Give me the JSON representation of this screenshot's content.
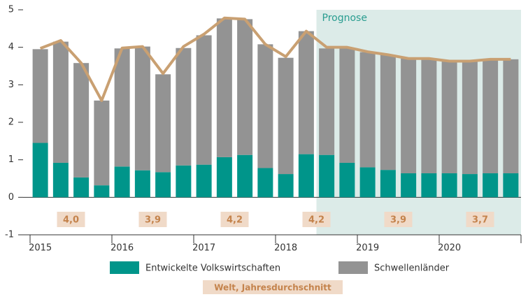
{
  "chart_data": {
    "type": "stacked-bar-line",
    "categories": [
      "2015",
      null,
      null,
      null,
      "2016",
      null,
      null,
      null,
      "2017",
      null,
      null,
      null,
      "2018",
      null,
      null,
      null,
      "2019",
      null,
      null,
      null,
      "2020",
      null,
      null,
      null
    ],
    "series": [
      {
        "name": "Entwickelte Volkswirtschaften",
        "color": "#00958a",
        "values": [
          1.45,
          0.92,
          0.53,
          0.32,
          0.82,
          0.72,
          0.67,
          0.85,
          0.87,
          1.07,
          1.13,
          0.78,
          0.62,
          1.15,
          1.13,
          0.92,
          0.8,
          0.73,
          0.64,
          0.64,
          0.64,
          0.62,
          0.64,
          0.64
        ]
      },
      {
        "name": "Schwellenländer",
        "color": "#939393",
        "values": [
          2.5,
          3.23,
          3.05,
          2.26,
          3.15,
          3.3,
          2.61,
          3.13,
          3.45,
          3.7,
          3.62,
          3.3,
          3.1,
          3.28,
          2.84,
          3.06,
          3.07,
          3.07,
          3.06,
          3.06,
          2.99,
          3.01,
          3.03,
          3.04
        ]
      }
    ],
    "line": {
      "color": "#c9a072",
      "values": [
        3.97,
        4.18,
        3.58,
        2.58,
        3.98,
        4.02,
        3.3,
        4.02,
        4.35,
        4.78,
        4.75,
        4.08,
        3.75,
        4.43,
        4.0,
        4.0,
        3.88,
        3.8,
        3.7,
        3.7,
        3.63,
        3.63,
        3.68,
        3.68
      ]
    },
    "annual_average": {
      "name": "Welt, Jahresdurchschnitt",
      "values": [
        4.0,
        3.9,
        4.2,
        4.2,
        3.9,
        3.7
      ],
      "value_labels": [
        "4,0",
        "3,9",
        "4,2",
        "4,2",
        "3,9",
        "3,7"
      ]
    },
    "forecast": {
      "label": "Prognose",
      "start_index": 14
    },
    "ylim": [
      -1,
      5
    ],
    "yticks": [
      -1,
      0,
      1,
      2,
      3,
      4,
      5
    ]
  }
}
